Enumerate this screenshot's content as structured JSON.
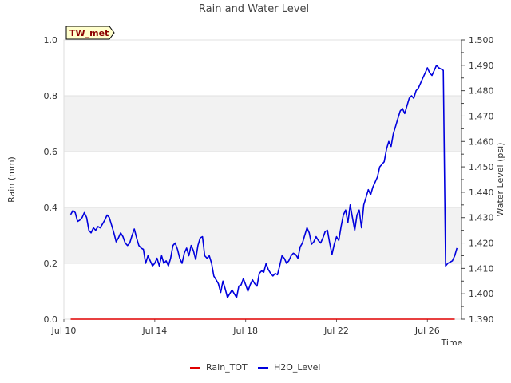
{
  "chart_data": {
    "type": "line",
    "title": "Rain and Water Level",
    "badge": "TW_met",
    "xlabel": "Time",
    "ylabel_left": "Rain (mm)",
    "ylabel_right": "Water Level (psi)",
    "x_range_days": [
      0,
      17.5
    ],
    "x_ticks": [
      {
        "label": "Jul 10",
        "day": 0
      },
      {
        "label": "Jul 14",
        "day": 4
      },
      {
        "label": "Jul 18",
        "day": 8
      },
      {
        "label": "Jul 22",
        "day": 12
      },
      {
        "label": "Jul 26",
        "day": 16
      }
    ],
    "ylim_left": [
      0.0,
      1.0
    ],
    "y_ticks_left": [
      "0.0",
      "0.2",
      "0.4",
      "0.6",
      "0.8",
      "1.0"
    ],
    "ylim_right": [
      1.39,
      1.5
    ],
    "y_ticks_right": [
      "1.390",
      "1.400",
      "1.410",
      "1.420",
      "1.430",
      "1.440",
      "1.450",
      "1.460",
      "1.470",
      "1.480",
      "1.490",
      "1.500"
    ],
    "shaded_bands_left": [
      [
        0.2,
        0.4
      ],
      [
        0.6,
        0.8
      ]
    ],
    "series": [
      {
        "name": "Rain_TOT",
        "color": "#e00000",
        "axis": "left",
        "x": [
          0.3,
          17.2
        ],
        "y": [
          0.0,
          0.0
        ]
      },
      {
        "name": "H2O_Level",
        "color": "#0000dd",
        "axis": "right",
        "x": [
          0.3,
          0.4,
          0.5,
          0.6,
          0.7,
          0.8,
          0.9,
          1.0,
          1.1,
          1.2,
          1.3,
          1.4,
          1.5,
          1.6,
          1.7,
          1.8,
          1.9,
          2.0,
          2.1,
          2.2,
          2.3,
          2.4,
          2.5,
          2.6,
          2.7,
          2.8,
          2.9,
          3.0,
          3.1,
          3.2,
          3.3,
          3.4,
          3.5,
          3.6,
          3.7,
          3.8,
          3.9,
          4.0,
          4.1,
          4.2,
          4.3,
          4.4,
          4.5,
          4.6,
          4.7,
          4.8,
          4.9,
          5.0,
          5.1,
          5.2,
          5.3,
          5.4,
          5.5,
          5.6,
          5.7,
          5.8,
          5.9,
          6.0,
          6.1,
          6.2,
          6.3,
          6.4,
          6.5,
          6.6,
          6.7,
          6.8,
          6.9,
          7.0,
          7.1,
          7.2,
          7.3,
          7.4,
          7.5,
          7.6,
          7.7,
          7.8,
          7.9,
          8.0,
          8.1,
          8.2,
          8.3,
          8.4,
          8.5,
          8.6,
          8.7,
          8.8,
          8.9,
          9.0,
          9.1,
          9.2,
          9.3,
          9.4,
          9.5,
          9.6,
          9.7,
          9.8,
          9.9,
          10.0,
          10.1,
          10.2,
          10.3,
          10.4,
          10.5,
          10.6,
          10.7,
          10.8,
          10.9,
          11.0,
          11.1,
          11.2,
          11.3,
          11.4,
          11.5,
          11.6,
          11.7,
          11.8,
          11.9,
          12.0,
          12.1,
          12.2,
          12.3,
          12.4,
          12.5,
          12.6,
          12.7,
          12.8,
          12.9,
          13.0,
          13.1,
          13.2,
          13.3,
          13.4,
          13.5,
          13.6,
          13.7,
          13.8,
          13.9,
          14.0,
          14.1,
          14.2,
          14.3,
          14.4,
          14.5,
          14.6,
          14.7,
          14.8,
          14.9,
          15.0,
          15.1,
          15.2,
          15.3,
          15.4,
          15.5,
          15.6,
          15.7,
          15.8,
          15.9,
          16.0,
          16.1,
          16.2,
          16.3,
          16.4,
          16.5,
          16.6,
          16.7,
          16.8,
          16.9,
          17.0,
          17.1,
          17.2,
          17.3
        ],
        "y": [
          1.4312,
          1.4328,
          1.432,
          1.4285,
          1.429,
          1.43,
          1.432,
          1.43,
          1.425,
          1.424,
          1.426,
          1.425,
          1.4265,
          1.426,
          1.4275,
          1.429,
          1.431,
          1.43,
          1.427,
          1.424,
          1.4205,
          1.422,
          1.424,
          1.4225,
          1.42,
          1.419,
          1.42,
          1.423,
          1.4255,
          1.422,
          1.419,
          1.418,
          1.4175,
          1.412,
          1.415,
          1.413,
          1.411,
          1.412,
          1.414,
          1.411,
          1.415,
          1.412,
          1.413,
          1.411,
          1.414,
          1.419,
          1.42,
          1.4175,
          1.414,
          1.412,
          1.416,
          1.418,
          1.415,
          1.419,
          1.417,
          1.4135,
          1.419,
          1.422,
          1.4225,
          1.415,
          1.414,
          1.415,
          1.412,
          1.407,
          1.4055,
          1.404,
          1.4005,
          1.405,
          1.402,
          1.3985,
          1.4,
          1.4015,
          1.4,
          1.3985,
          1.403,
          1.4035,
          1.406,
          1.4035,
          1.401,
          1.4035,
          1.4055,
          1.404,
          1.403,
          1.408,
          1.409,
          1.4085,
          1.412,
          1.4095,
          1.408,
          1.407,
          1.408,
          1.4075,
          1.411,
          1.415,
          1.414,
          1.412,
          1.413,
          1.415,
          1.416,
          1.4155,
          1.414,
          1.4185,
          1.42,
          1.423,
          1.426,
          1.424,
          1.4195,
          1.4205,
          1.4225,
          1.421,
          1.42,
          1.422,
          1.4245,
          1.425,
          1.42,
          1.4155,
          1.4195,
          1.4225,
          1.421,
          1.4265,
          1.431,
          1.433,
          1.428,
          1.435,
          1.43,
          1.425,
          1.431,
          1.433,
          1.426,
          1.435,
          1.438,
          1.441,
          1.439,
          1.442,
          1.444,
          1.446,
          1.45,
          1.451,
          1.452,
          1.457,
          1.46,
          1.458,
          1.463,
          1.466,
          1.469,
          1.472,
          1.473,
          1.471,
          1.474,
          1.477,
          1.478,
          1.477,
          1.48,
          1.481,
          1.483,
          1.485,
          1.487,
          1.489,
          1.487,
          1.486,
          1.488,
          1.49,
          1.489,
          1.4885,
          1.488,
          1.411,
          1.412,
          1.4125,
          1.413,
          1.415,
          1.418
        ]
      }
    ]
  }
}
